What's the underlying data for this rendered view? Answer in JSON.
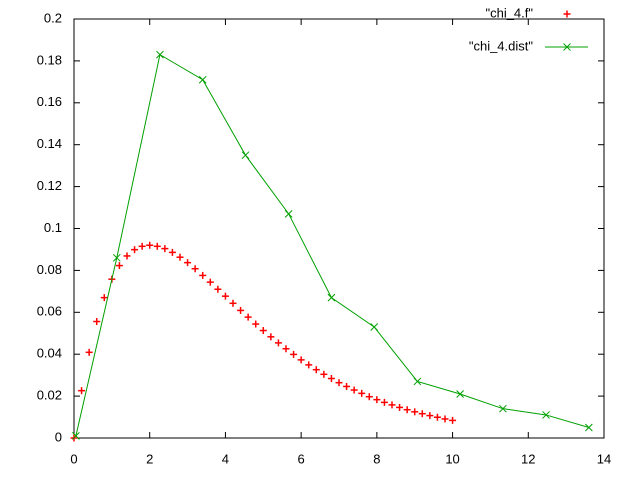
{
  "chart_data": {
    "type": "line",
    "xlim": [
      0,
      14
    ],
    "xticks": [
      0,
      2,
      4,
      6,
      8,
      10,
      12,
      14
    ],
    "ylim": [
      0,
      0.2
    ],
    "yticks": [
      0,
      0.02,
      0.04,
      0.06,
      0.08,
      0.1,
      0.12,
      0.14,
      0.16,
      0.18,
      0.2
    ],
    "legend": "top-right",
    "series": [
      {
        "name": "\"chi_4.f\"",
        "color": "#ff0000",
        "style": "points",
        "marker": "plus",
        "x": [
          0,
          0.2,
          0.4,
          0.6,
          0.8,
          1,
          1.2,
          1.4,
          1.6,
          1.8,
          2,
          2.2,
          2.4,
          2.6,
          2.8,
          3,
          3.2,
          3.4,
          3.6,
          3.8,
          4,
          4.2,
          4.4,
          4.6,
          4.8,
          5,
          5.2,
          5.4,
          5.6,
          5.8,
          6,
          6.2,
          6.4,
          6.6,
          6.8,
          7,
          7.2,
          7.4,
          7.6,
          7.8,
          8,
          8.2,
          8.4,
          8.6,
          8.8,
          9,
          9.2,
          9.4,
          9.6,
          9.8,
          10
        ],
        "values": [
          0,
          0.0226,
          0.0409,
          0.0556,
          0.067,
          0.0758,
          0.0823,
          0.0869,
          0.0899,
          0.0915,
          0.092,
          0.0915,
          0.0904,
          0.0886,
          0.0863,
          0.0837,
          0.0808,
          0.0776,
          0.0744,
          0.071,
          0.0677,
          0.0643,
          0.0609,
          0.0577,
          0.0544,
          0.0513,
          0.0483,
          0.0454,
          0.0426,
          0.0399,
          0.0373,
          0.0349,
          0.0326,
          0.0304,
          0.0284,
          0.0264,
          0.0246,
          0.0229,
          0.0213,
          0.0197,
          0.0183,
          0.017,
          0.0158,
          0.0146,
          0.0135,
          0.0125,
          0.0116,
          0.0107,
          0.0099,
          0.0091,
          0.0084
        ]
      },
      {
        "name": "\"chi_4.dist\"",
        "color": "#00a000",
        "style": "linespoints",
        "marker": "cross",
        "x": [
          0.05,
          1.13,
          2.27,
          3.4,
          4.53,
          5.67,
          6.8,
          7.93,
          9.07,
          10.2,
          11.33,
          12.47,
          13.6
        ],
        "values": [
          0.001,
          0.086,
          0.183,
          0.171,
          0.135,
          0.107,
          0.067,
          0.053,
          0.027,
          0.021,
          0.014,
          0.011,
          0.005
        ]
      }
    ]
  }
}
